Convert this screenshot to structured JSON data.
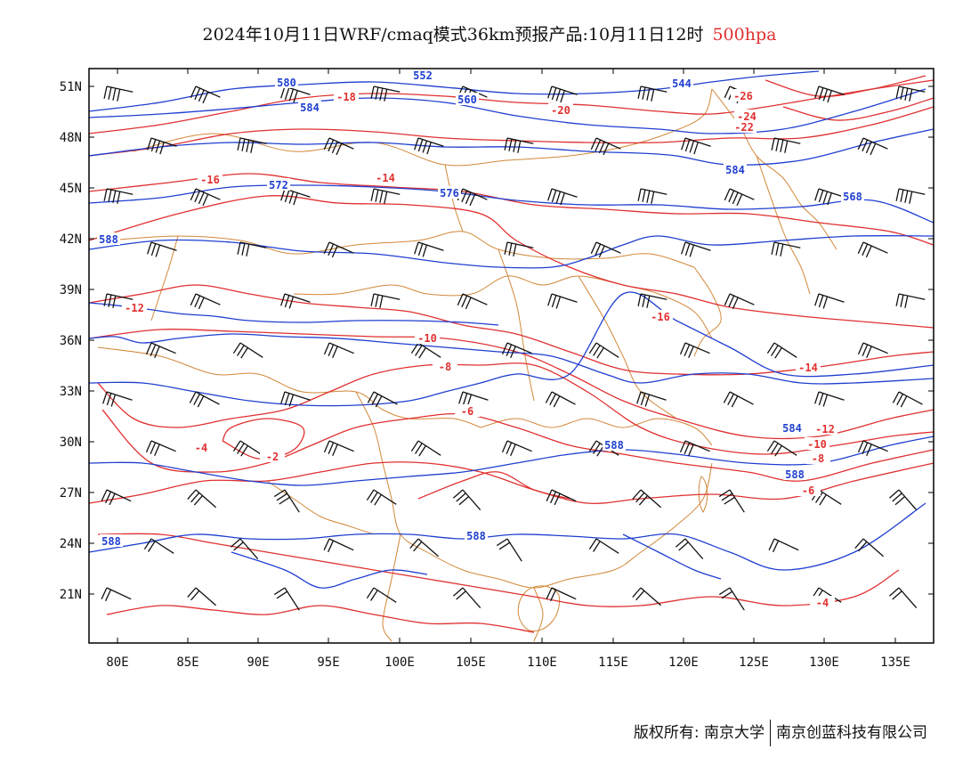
{
  "header": {
    "title": "2024年10月11日WRF/cmaq模式36km预报产品:10月11日12时",
    "level": "500hpa"
  },
  "axes": {
    "lat_labels": [
      "51N",
      "48N",
      "45N",
      "42N",
      "39N",
      "36N",
      "33N",
      "30N",
      "27N",
      "24N",
      "21N"
    ],
    "lon_labels": [
      "80E",
      "85E",
      "90E",
      "95E",
      "100E",
      "105E",
      "110E",
      "115E",
      "120E",
      "125E",
      "130E",
      "135E"
    ]
  },
  "colors": {
    "height_contour": "#1f3fd0",
    "temperature_contour": "#e03030",
    "border": "#d2883a",
    "wind_barb": "#111111"
  },
  "height_labels": [
    "580",
    "584",
    "560",
    "588",
    "572",
    "576",
    "544",
    "568",
    "552",
    "584",
    "584",
    "588",
    "588",
    "588",
    "588"
  ],
  "temp_labels": [
    "-18",
    "-16",
    "-14",
    "-12",
    "-10",
    "-8",
    "-6",
    "-4",
    "-2",
    "-20",
    "-22",
    "-24",
    "-26",
    "-16",
    "-14",
    "-12",
    "-10",
    "-8",
    "-6",
    "-4"
  ],
  "footer": {
    "left": "版权所有: 南京大学",
    "right": "南京创蓝科技有限公司"
  }
}
